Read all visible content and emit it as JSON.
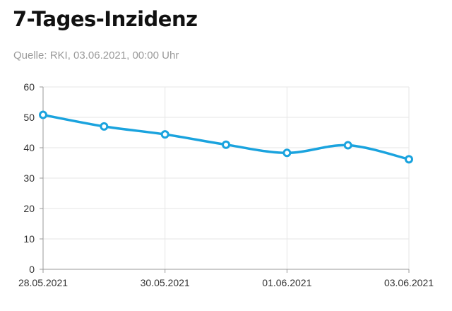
{
  "header": {
    "title": "7-Tages-Inzidenz",
    "source": "Quelle: RKI, 03.06.2021, 00:00 Uhr"
  },
  "colors": {
    "line": "#1aa3de",
    "grid": "#e6e6e6",
    "axis": "#999999"
  },
  "chart_data": {
    "type": "line",
    "title": "7-Tages-Inzidenz",
    "xlabel": "",
    "ylabel": "",
    "x": [
      "28.05.2021",
      "29.05.2021",
      "30.05.2021",
      "31.05.2021",
      "01.06.2021",
      "02.06.2021",
      "03.06.2021"
    ],
    "series": [
      {
        "values": [
          50.8,
          47.0,
          44.4,
          41.0,
          38.3,
          40.8,
          36.2
        ]
      }
    ],
    "x_tick_labels": [
      "28.05.2021",
      "30.05.2021",
      "01.06.2021",
      "03.06.2021"
    ],
    "y_ticks": [
      0,
      10,
      20,
      30,
      40,
      50,
      60
    ],
    "ylim": [
      0,
      60
    ],
    "grid": true,
    "legend": "none",
    "smooth": true,
    "markers": true
  }
}
